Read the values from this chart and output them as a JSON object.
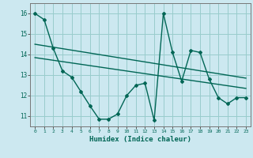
{
  "title": "",
  "xlabel": "Humidex (Indice chaleur)",
  "background_color": "#cce8f0",
  "grid_color": "#99cccc",
  "line_color": "#006655",
  "xlim": [
    -0.5,
    23.5
  ],
  "ylim": [
    10.5,
    16.5
  ],
  "xticks": [
    0,
    1,
    2,
    3,
    4,
    5,
    6,
    7,
    8,
    9,
    10,
    11,
    12,
    13,
    14,
    15,
    16,
    17,
    18,
    19,
    20,
    21,
    22,
    23
  ],
  "yticks": [
    11,
    12,
    13,
    14,
    15,
    16
  ],
  "data_x": [
    0,
    1,
    2,
    3,
    4,
    5,
    6,
    7,
    8,
    9,
    10,
    11,
    12,
    13,
    14,
    15,
    16,
    17,
    18,
    19,
    20,
    21,
    22,
    23
  ],
  "data_y": [
    16.0,
    15.7,
    14.3,
    13.2,
    12.9,
    12.2,
    11.5,
    10.85,
    10.85,
    11.1,
    12.0,
    12.5,
    12.6,
    10.8,
    16.0,
    14.1,
    12.7,
    14.2,
    14.1,
    12.8,
    11.9,
    11.6,
    11.9,
    11.9
  ],
  "trend1_x": [
    0,
    23
  ],
  "trend1_y": [
    14.5,
    12.85
  ],
  "trend2_x": [
    0,
    23
  ],
  "trend2_y": [
    13.85,
    12.35
  ]
}
